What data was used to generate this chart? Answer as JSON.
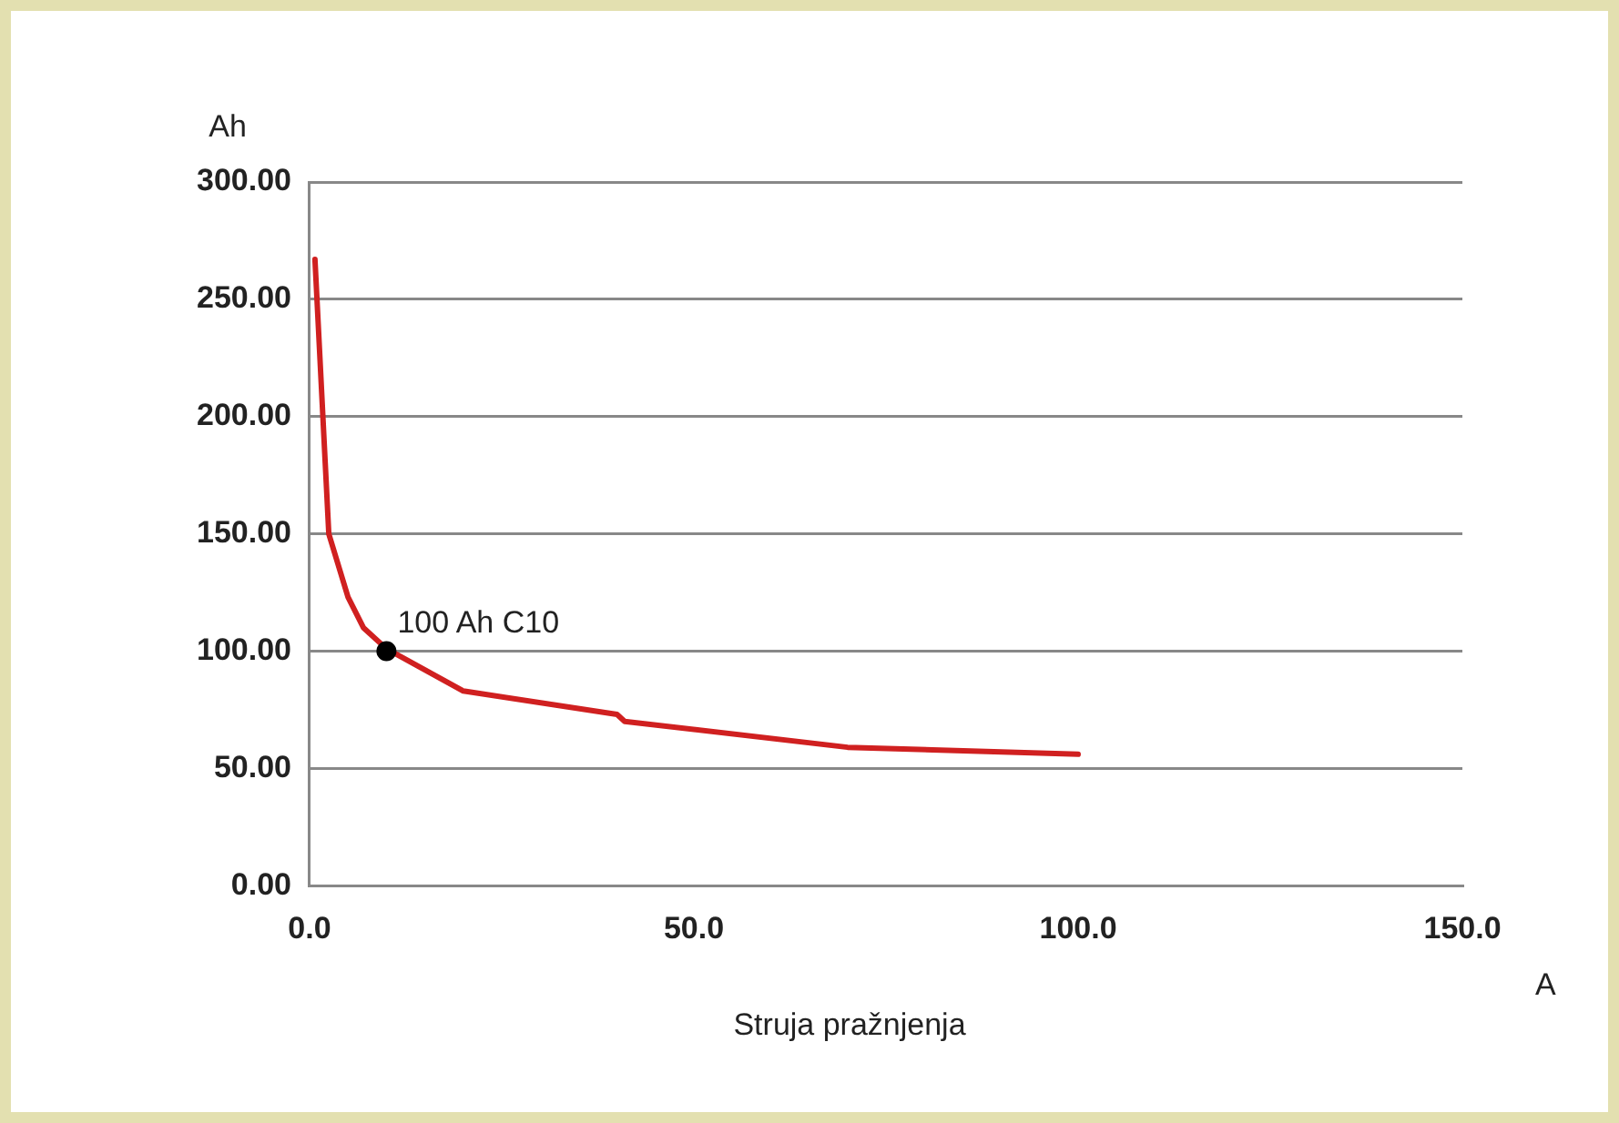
{
  "chart_data": {
    "type": "line",
    "xlabel": "Struja pražnjenja",
    "ylabel": "Ah",
    "xlim": [
      0,
      150
    ],
    "xticks": [
      {
        "value": 0,
        "label": "0.0"
      },
      {
        "value": 50,
        "label": "50.0"
      },
      {
        "value": 100,
        "label": "100.0"
      },
      {
        "value": 150,
        "label": "150.0"
      }
    ],
    "ylim": [
      0,
      300
    ],
    "yticks": [
      {
        "value": 0,
        "label": "0.00"
      },
      {
        "value": 50,
        "label": "50.00"
      },
      {
        "value": 100,
        "label": "100.00"
      },
      {
        "value": 150,
        "label": "150.00"
      },
      {
        "value": 200,
        "label": "200.00"
      },
      {
        "value": 250,
        "label": "250.00"
      },
      {
        "value": 300,
        "label": "300.00"
      }
    ],
    "grid": "y",
    "legend": false,
    "line_style": "solid",
    "series": [
      {
        "type": "line",
        "color": "#d02020",
        "marker": "none",
        "x": [
          0.7,
          2.5,
          5,
          7,
          10,
          20,
          40,
          41,
          70,
          100
        ],
        "values": [
          267,
          150,
          123,
          110,
          101,
          83,
          73,
          70,
          59,
          56
        ]
      },
      {
        "type": "scatter",
        "color": "#000000",
        "marker": "circle",
        "x": [
          10
        ],
        "values": [
          100
        ]
      }
    ],
    "annotations": [
      {
        "text": "100 Ah C10",
        "x": 10,
        "y": 100
      },
      "A"
    ]
  }
}
